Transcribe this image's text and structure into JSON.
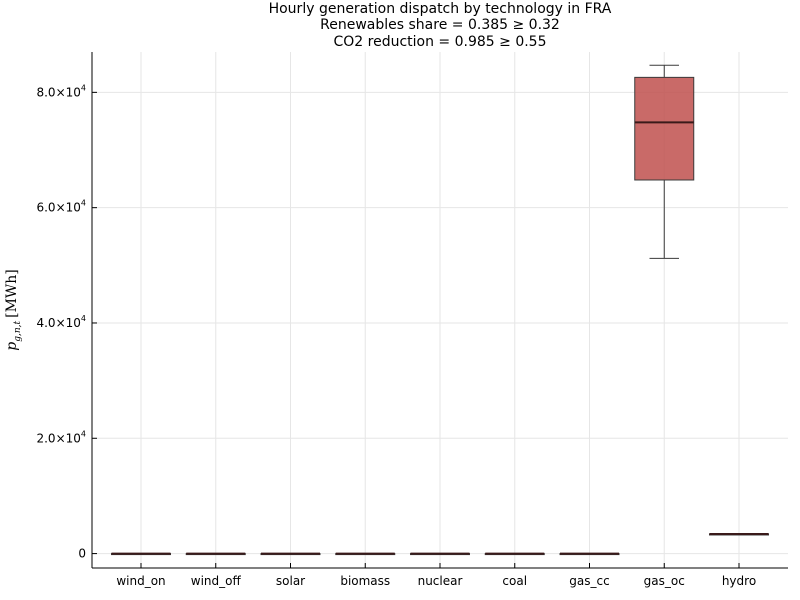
{
  "chart_data": {
    "type": "box",
    "title": "Hourly generation dispatch by technology in FRA",
    "subtitle_lines": [
      "Renewables share = 0.385 ≥ 0.32",
      "CO2 reduction = 0.985 ≥ 0.55"
    ],
    "ylabel": "p_{g,n,t} [MWh]",
    "ylabel_main": "p",
    "ylabel_sub": "g,n,t",
    "ylabel_unit": "[MWh]",
    "xlabel": "",
    "grid": true,
    "ylim": [
      -2500,
      87000
    ],
    "yticks": [
      {
        "value": 0,
        "base": "0",
        "exp": ""
      },
      {
        "value": 20000,
        "base": "2.0×10",
        "exp": "4"
      },
      {
        "value": 40000,
        "base": "4.0×10",
        "exp": "4"
      },
      {
        "value": 60000,
        "base": "6.0×10",
        "exp": "4"
      },
      {
        "value": 80000,
        "base": "8.0×10",
        "exp": "4"
      }
    ],
    "categories": [
      "wind_on",
      "wind_off",
      "solar",
      "biomass",
      "nuclear",
      "coal",
      "gas_cc",
      "gas_oc",
      "hydro"
    ],
    "boxes": [
      {
        "category": "wind_on",
        "min": 0,
        "q1": 0,
        "median": 0,
        "q3": 0,
        "max": 0
      },
      {
        "category": "wind_off",
        "min": 0,
        "q1": 0,
        "median": 0,
        "q3": 0,
        "max": 0
      },
      {
        "category": "solar",
        "min": 0,
        "q1": 0,
        "median": 0,
        "q3": 0,
        "max": 0
      },
      {
        "category": "biomass",
        "min": 0,
        "q1": 0,
        "median": 0,
        "q3": 0,
        "max": 0
      },
      {
        "category": "nuclear",
        "min": 0,
        "q1": 0,
        "median": 0,
        "q3": 0,
        "max": 0
      },
      {
        "category": "coal",
        "min": 0,
        "q1": 0,
        "median": 0,
        "q3": 0,
        "max": 0
      },
      {
        "category": "gas_cc",
        "min": 0,
        "q1": 0,
        "median": 0,
        "q3": 0,
        "max": 0
      },
      {
        "category": "gas_oc",
        "min": 51200,
        "q1": 64800,
        "median": 74800,
        "q3": 82600,
        "max": 84700
      },
      {
        "category": "hydro",
        "min": 3400,
        "q1": 3400,
        "median": 3400,
        "q3": 3400,
        "max": 3400
      }
    ],
    "box_color": "#c0504d"
  }
}
